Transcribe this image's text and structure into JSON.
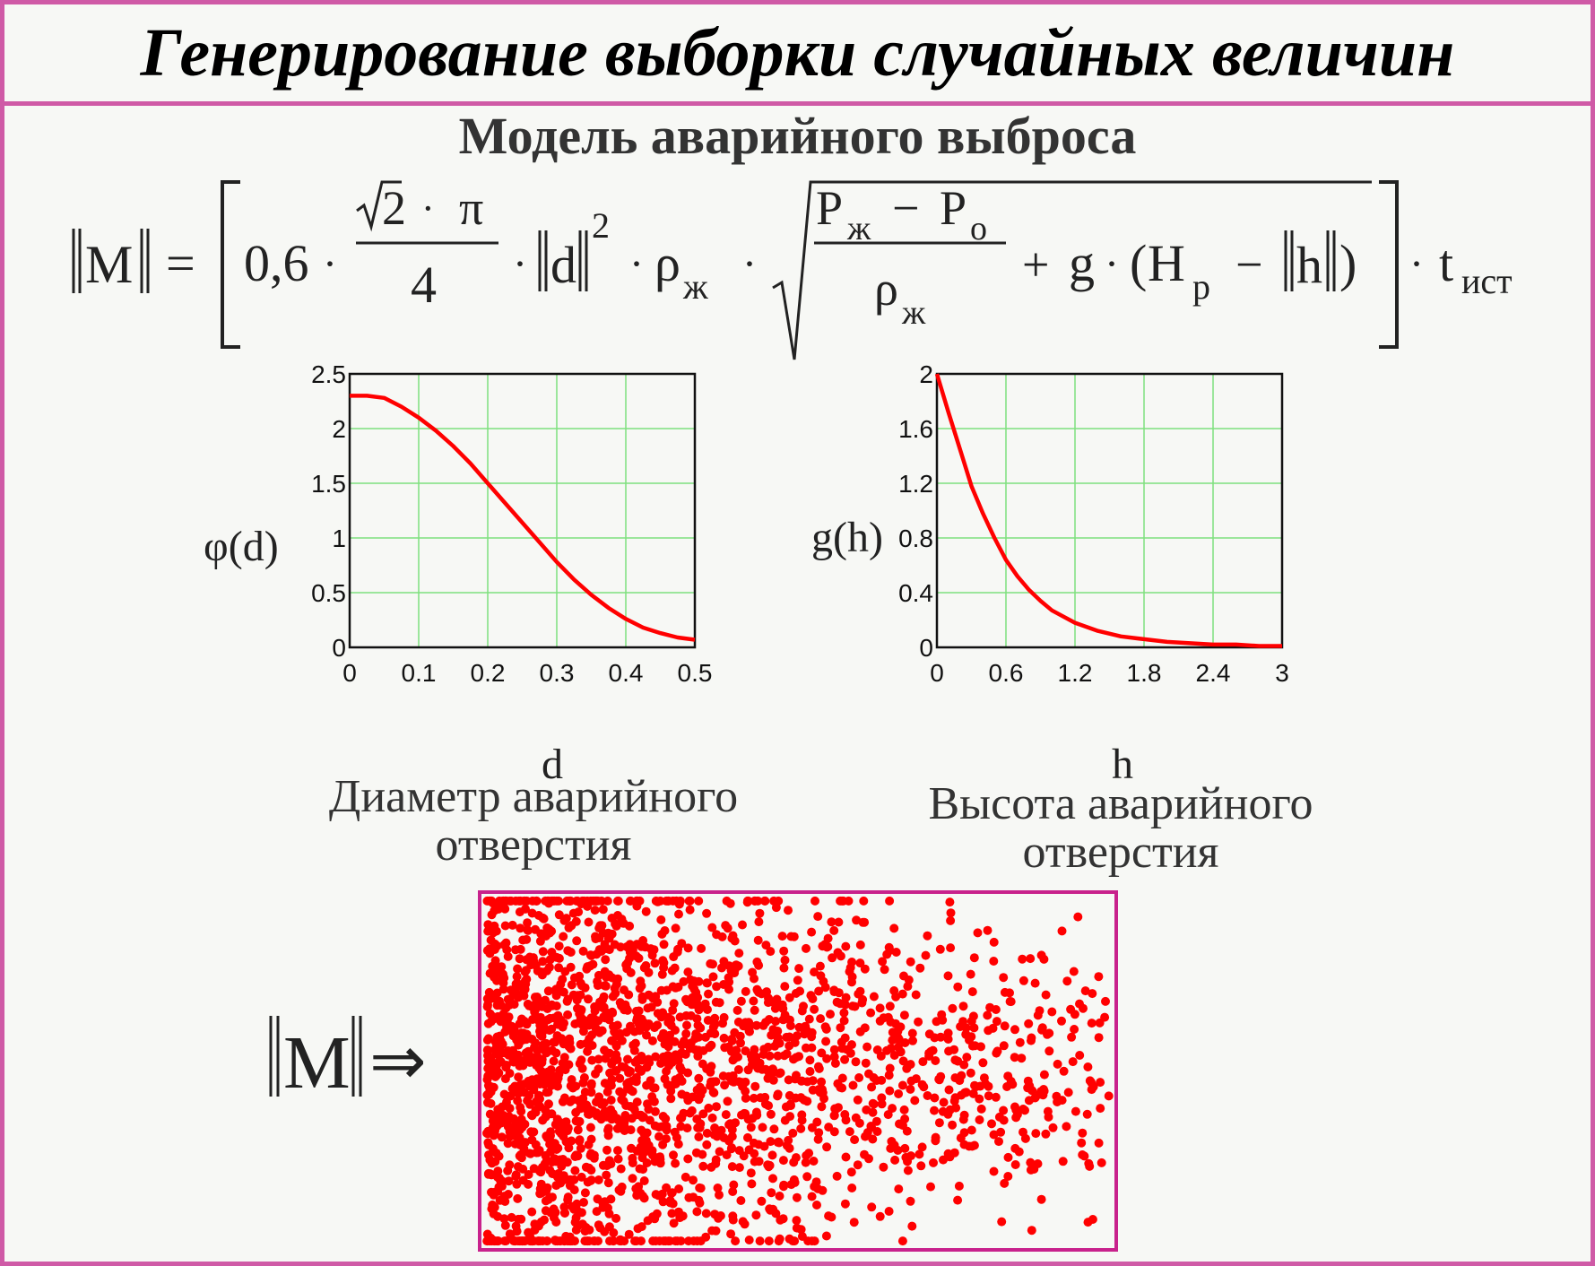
{
  "title": "Генерирование выборки случайных величин",
  "subtitle": "Модель аварийного выброса",
  "formula": {
    "lhs": "M",
    "equals": "=",
    "coef": "0,6",
    "dot": "·",
    "sqrt_num": "2",
    "pi": "π",
    "denom": "4",
    "d": "d",
    "d_exp": "2",
    "rho": "ρ",
    "sub_zh": "ж",
    "P": "P",
    "minus": "−",
    "sub_o": "o",
    "plus": "+",
    "g": "g",
    "lparen": "(",
    "H": "H",
    "sub_p": "p",
    "h": "h",
    "rparen": ")",
    "t": "t",
    "sub_ist": "ист"
  },
  "charts": {
    "left": {
      "ylabel": "φ(d)",
      "xlabel": "d",
      "caption_line1": "Диаметр аварийного",
      "caption_line2": "отверстия"
    },
    "right": {
      "ylabel": "g(h)",
      "xlabel": "h",
      "caption_line1": "Высота аварийного",
      "caption_line2": "отверстия"
    }
  },
  "scatter_label": {
    "var": "M",
    "arrow": "⇒"
  },
  "colors": {
    "frame": "#cf5aa6",
    "scatter_frame": "#c8228c",
    "curve": "#ff0000",
    "grid": "#7ee07e"
  },
  "chart_data": [
    {
      "type": "line",
      "x": [
        0,
        0.025,
        0.05,
        0.075,
        0.1,
        0.125,
        0.15,
        0.175,
        0.2,
        0.225,
        0.25,
        0.275,
        0.3,
        0.325,
        0.35,
        0.375,
        0.4,
        0.425,
        0.45,
        0.475,
        0.5
      ],
      "y": [
        2.3,
        2.3,
        2.28,
        2.2,
        2.1,
        1.98,
        1.84,
        1.68,
        1.5,
        1.32,
        1.14,
        0.96,
        0.78,
        0.62,
        0.48,
        0.36,
        0.26,
        0.18,
        0.13,
        0.09,
        0.07
      ],
      "xlim": [
        0,
        0.5
      ],
      "ylim": [
        0,
        2.5
      ],
      "xticks": [
        "0",
        "0.1",
        "0.2",
        "0.3",
        "0.4",
        "0.5"
      ],
      "yticks": [
        "0",
        "0.5",
        "1",
        "1.5",
        "2",
        "2.5"
      ],
      "xlabel": "d",
      "ylabel": "φ(d)",
      "grid": true
    },
    {
      "type": "line",
      "x": [
        0,
        0.1,
        0.2,
        0.3,
        0.4,
        0.5,
        0.6,
        0.7,
        0.8,
        0.9,
        1.0,
        1.2,
        1.4,
        1.6,
        1.8,
        2.0,
        2.2,
        2.4,
        2.6,
        2.8,
        3.0
      ],
      "y": [
        2.0,
        1.72,
        1.45,
        1.18,
        0.98,
        0.8,
        0.64,
        0.52,
        0.42,
        0.34,
        0.27,
        0.18,
        0.12,
        0.08,
        0.06,
        0.04,
        0.03,
        0.02,
        0.02,
        0.01,
        0.01
      ],
      "xlim": [
        0,
        3
      ],
      "ylim": [
        0,
        2
      ],
      "xticks": [
        "0",
        "0.6",
        "1.2",
        "1.8",
        "2.4",
        "3"
      ],
      "yticks": [
        "0",
        "0.4",
        "0.8",
        "1.2",
        "1.6",
        "2"
      ],
      "xlabel": "h",
      "ylabel": "g(h)",
      "grid": true
    },
    {
      "type": "scatter",
      "point_count": 2200,
      "density": "concentrated at left, sparse to the right"
    }
  ]
}
